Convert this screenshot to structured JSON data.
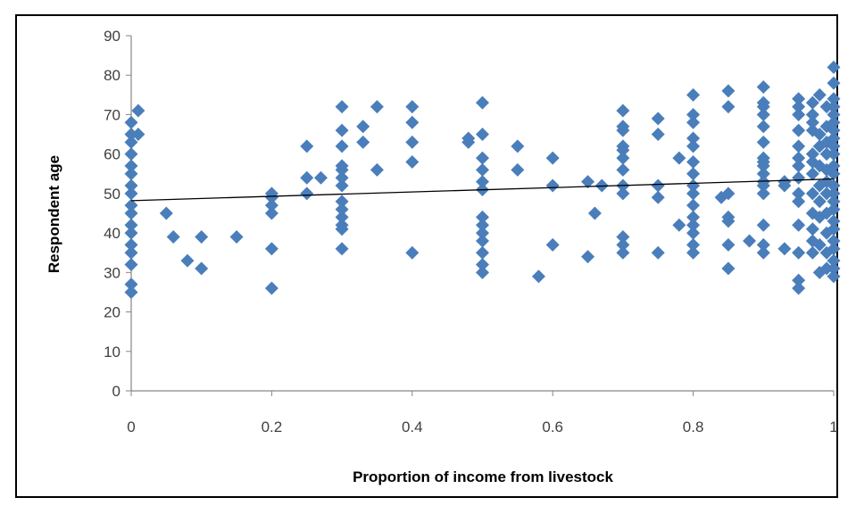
{
  "chart_data": {
    "type": "scatter",
    "title": "",
    "xlabel": "Proportion of income from livestock",
    "ylabel": "Respondent age",
    "xlim": [
      0,
      1
    ],
    "ylim": [
      0,
      90
    ],
    "x_ticks": [
      "0",
      "0.2",
      "0.4",
      "0.6",
      "0.8",
      "1"
    ],
    "y_ticks": [
      "0",
      "10",
      "20",
      "30",
      "40",
      "50",
      "60",
      "70",
      "80",
      "90"
    ],
    "grid": false,
    "legend": "none",
    "marker": "diamond",
    "marker_color": "#4a7ebb",
    "trendline": {
      "type": "linear",
      "color": "#000000",
      "points": [
        [
          0,
          48.2
        ],
        [
          1,
          53.7
        ]
      ]
    },
    "series": [
      {
        "points": [
          [
            0,
            25
          ],
          [
            0,
            27
          ],
          [
            0,
            32
          ],
          [
            0,
            35
          ],
          [
            0,
            37
          ],
          [
            0,
            40
          ],
          [
            0,
            42
          ],
          [
            0,
            45
          ],
          [
            0,
            47
          ],
          [
            0,
            50
          ],
          [
            0,
            52
          ],
          [
            0,
            55
          ],
          [
            0,
            57
          ],
          [
            0,
            60
          ],
          [
            0,
            63
          ],
          [
            0,
            65
          ],
          [
            0,
            68
          ],
          [
            0.01,
            65
          ],
          [
            0.01,
            71
          ],
          [
            0.05,
            45
          ],
          [
            0.06,
            39
          ],
          [
            0.08,
            33
          ],
          [
            0.1,
            39
          ],
          [
            0.1,
            31
          ],
          [
            0.15,
            39
          ],
          [
            0.2,
            26
          ],
          [
            0.2,
            36
          ],
          [
            0.2,
            45
          ],
          [
            0.2,
            47
          ],
          [
            0.2,
            49
          ],
          [
            0.2,
            50
          ],
          [
            0.25,
            62
          ],
          [
            0.25,
            54
          ],
          [
            0.25,
            50
          ],
          [
            0.27,
            54
          ],
          [
            0.3,
            36
          ],
          [
            0.3,
            41
          ],
          [
            0.3,
            42
          ],
          [
            0.3,
            44
          ],
          [
            0.3,
            46
          ],
          [
            0.3,
            48
          ],
          [
            0.3,
            52
          ],
          [
            0.3,
            54
          ],
          [
            0.3,
            56
          ],
          [
            0.3,
            57
          ],
          [
            0.3,
            62
          ],
          [
            0.3,
            66
          ],
          [
            0.3,
            72
          ],
          [
            0.33,
            67
          ],
          [
            0.33,
            63
          ],
          [
            0.35,
            72
          ],
          [
            0.35,
            56
          ],
          [
            0.4,
            35
          ],
          [
            0.4,
            58
          ],
          [
            0.4,
            63
          ],
          [
            0.4,
            68
          ],
          [
            0.4,
            72
          ],
          [
            0.48,
            63
          ],
          [
            0.48,
            64
          ],
          [
            0.5,
            30
          ],
          [
            0.5,
            32
          ],
          [
            0.5,
            35
          ],
          [
            0.5,
            38
          ],
          [
            0.5,
            40
          ],
          [
            0.5,
            42
          ],
          [
            0.5,
            44
          ],
          [
            0.5,
            51
          ],
          [
            0.5,
            53
          ],
          [
            0.5,
            56
          ],
          [
            0.5,
            59
          ],
          [
            0.5,
            65
          ],
          [
            0.5,
            73
          ],
          [
            0.55,
            62
          ],
          [
            0.55,
            56
          ],
          [
            0.58,
            29
          ],
          [
            0.6,
            37
          ],
          [
            0.6,
            52
          ],
          [
            0.6,
            59
          ],
          [
            0.65,
            34
          ],
          [
            0.65,
            53
          ],
          [
            0.66,
            45
          ],
          [
            0.67,
            52
          ],
          [
            0.7,
            35
          ],
          [
            0.7,
            37
          ],
          [
            0.7,
            39
          ],
          [
            0.7,
            50
          ],
          [
            0.7,
            52
          ],
          [
            0.7,
            56
          ],
          [
            0.7,
            59
          ],
          [
            0.7,
            61
          ],
          [
            0.7,
            62
          ],
          [
            0.7,
            66
          ],
          [
            0.7,
            67
          ],
          [
            0.7,
            71
          ],
          [
            0.75,
            35
          ],
          [
            0.75,
            49
          ],
          [
            0.75,
            52
          ],
          [
            0.75,
            65
          ],
          [
            0.75,
            69
          ],
          [
            0.78,
            59
          ],
          [
            0.78,
            42
          ],
          [
            0.8,
            35
          ],
          [
            0.8,
            37
          ],
          [
            0.8,
            40
          ],
          [
            0.8,
            42
          ],
          [
            0.8,
            44
          ],
          [
            0.8,
            47
          ],
          [
            0.8,
            50
          ],
          [
            0.8,
            52
          ],
          [
            0.8,
            55
          ],
          [
            0.8,
            58
          ],
          [
            0.8,
            62
          ],
          [
            0.8,
            64
          ],
          [
            0.8,
            68
          ],
          [
            0.8,
            70
          ],
          [
            0.8,
            75
          ],
          [
            0.84,
            49
          ],
          [
            0.85,
            31
          ],
          [
            0.85,
            37
          ],
          [
            0.85,
            43
          ],
          [
            0.85,
            44
          ],
          [
            0.85,
            50
          ],
          [
            0.85,
            72
          ],
          [
            0.85,
            76
          ],
          [
            0.88,
            38
          ],
          [
            0.9,
            35
          ],
          [
            0.9,
            37
          ],
          [
            0.9,
            42
          ],
          [
            0.9,
            50
          ],
          [
            0.9,
            52
          ],
          [
            0.9,
            53
          ],
          [
            0.9,
            55
          ],
          [
            0.9,
            57
          ],
          [
            0.9,
            58
          ],
          [
            0.9,
            59
          ],
          [
            0.9,
            63
          ],
          [
            0.9,
            67
          ],
          [
            0.9,
            70
          ],
          [
            0.9,
            72
          ],
          [
            0.9,
            73
          ],
          [
            0.9,
            77
          ],
          [
            0.93,
            36
          ],
          [
            0.93,
            53
          ],
          [
            0.93,
            52
          ],
          [
            0.95,
            26
          ],
          [
            0.95,
            28
          ],
          [
            0.95,
            35
          ],
          [
            0.95,
            42
          ],
          [
            0.95,
            48
          ],
          [
            0.95,
            50
          ],
          [
            0.95,
            54
          ],
          [
            0.95,
            57
          ],
          [
            0.95,
            59
          ],
          [
            0.95,
            62
          ],
          [
            0.95,
            66
          ],
          [
            0.95,
            70
          ],
          [
            0.95,
            72
          ],
          [
            0.95,
            74
          ],
          [
            0.97,
            35
          ],
          [
            0.97,
            38
          ],
          [
            0.97,
            41
          ],
          [
            0.97,
            45
          ],
          [
            0.97,
            50
          ],
          [
            0.97,
            55
          ],
          [
            0.97,
            58
          ],
          [
            0.97,
            60
          ],
          [
            0.97,
            66
          ],
          [
            0.97,
            68
          ],
          [
            0.97,
            70
          ],
          [
            0.97,
            73
          ],
          [
            0.98,
            30
          ],
          [
            0.98,
            37
          ],
          [
            0.98,
            44
          ],
          [
            0.98,
            48
          ],
          [
            0.98,
            52
          ],
          [
            0.98,
            57
          ],
          [
            0.98,
            62
          ],
          [
            0.98,
            65
          ],
          [
            0.98,
            75
          ],
          [
            0.99,
            31
          ],
          [
            0.99,
            35
          ],
          [
            0.99,
            40
          ],
          [
            0.99,
            45
          ],
          [
            0.99,
            50
          ],
          [
            0.99,
            53
          ],
          [
            0.99,
            56
          ],
          [
            0.99,
            60
          ],
          [
            0.99,
            63
          ],
          [
            0.99,
            67
          ],
          [
            0.99,
            72
          ],
          [
            1,
            29
          ],
          [
            1,
            31
          ],
          [
            1,
            33
          ],
          [
            1,
            36
          ],
          [
            1,
            38
          ],
          [
            1,
            41
          ],
          [
            1,
            43
          ],
          [
            1,
            46
          ],
          [
            1,
            48
          ],
          [
            1,
            50
          ],
          [
            1,
            52
          ],
          [
            1,
            55
          ],
          [
            1,
            57
          ],
          [
            1,
            60
          ],
          [
            1,
            62
          ],
          [
            1,
            64
          ],
          [
            1,
            66
          ],
          [
            1,
            68
          ],
          [
            1,
            70
          ],
          [
            1,
            72
          ],
          [
            1,
            74
          ],
          [
            1,
            78
          ],
          [
            1,
            82
          ]
        ]
      }
    ]
  }
}
